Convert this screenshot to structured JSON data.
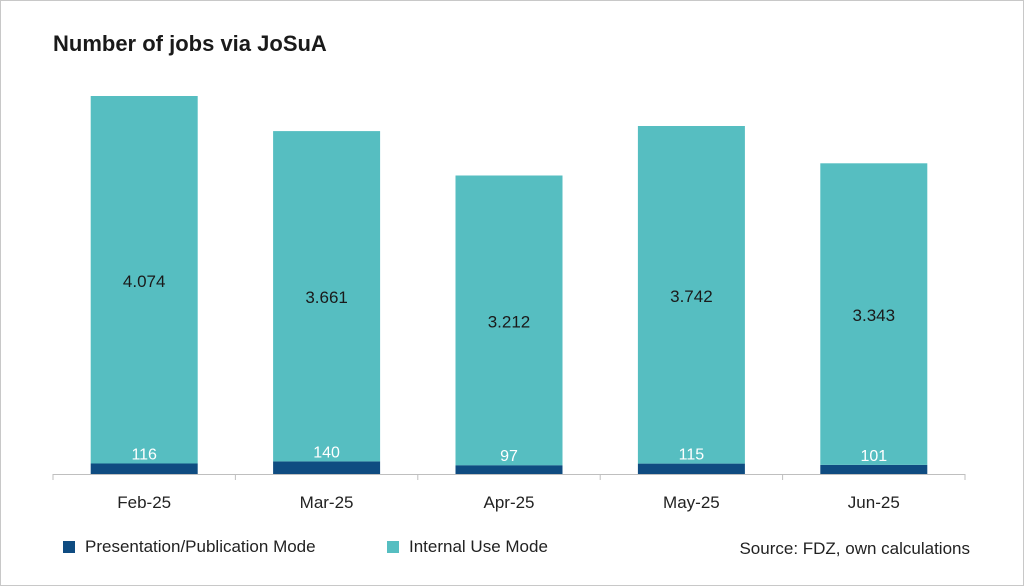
{
  "chart_data": {
    "type": "bar",
    "stacked": true,
    "title": "Number of jobs via JoSuA",
    "categories": [
      "Feb-25",
      "Mar-25",
      "Apr-25",
      "May-25",
      "Jun-25"
    ],
    "series": [
      {
        "name": "Presentation/Publication Mode",
        "color": "#0f4c81",
        "values": [
          116,
          140,
          97,
          115,
          101
        ],
        "labels": [
          "116",
          "140",
          "97",
          "115",
          "101"
        ]
      },
      {
        "name": "Internal Use Mode",
        "color": "#56bec1",
        "values": [
          4074,
          3661,
          3212,
          3742,
          3343
        ],
        "labels": [
          "4.074",
          "3.661",
          "3.212",
          "3.742",
          "3.343"
        ]
      }
    ],
    "ylim": [
      0,
      4190
    ],
    "grid": false,
    "legend_position": "bottom-left",
    "source": "Source: FDZ, own calculations"
  }
}
